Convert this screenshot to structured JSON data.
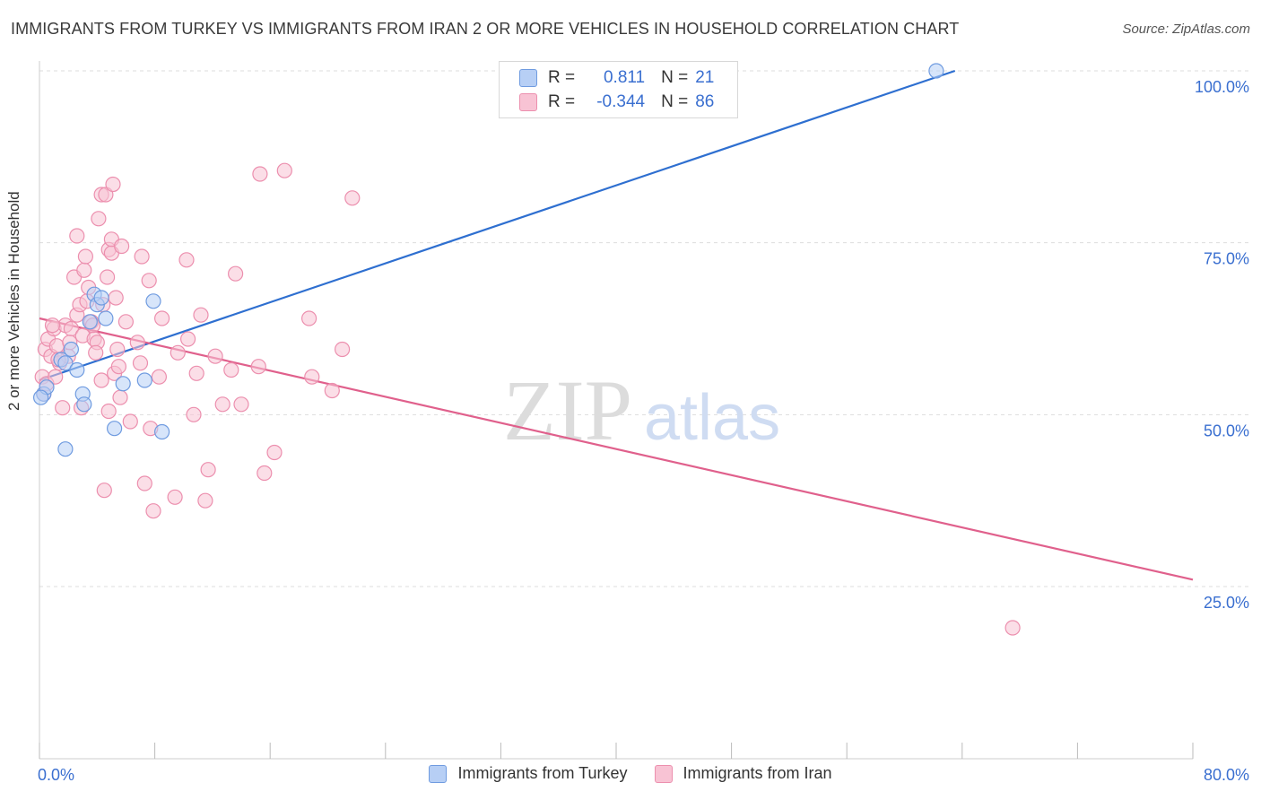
{
  "header": {
    "title": "IMMIGRANTS FROM TURKEY VS IMMIGRANTS FROM IRAN 2 OR MORE VEHICLES IN HOUSEHOLD CORRELATION CHART",
    "source": "Source: ZipAtlas.com"
  },
  "legend": {
    "r_label": "R =",
    "n_label": "N =",
    "turkey": {
      "r": "0.811",
      "n": "21"
    },
    "iran": {
      "r": "-0.344",
      "n": "86"
    }
  },
  "watermark": {
    "zip": "ZIP",
    "atlas": "atlas"
  },
  "colors": {
    "turkey_fill": "#b7cff5",
    "turkey_stroke": "#6f9be0",
    "turkey_line": "#2e6fd0",
    "iran_fill": "#f8c3d4",
    "iran_stroke": "#ec8fae",
    "iran_line": "#e0608c",
    "tick_label": "#3a6fd0",
    "grid": "#dddddd"
  },
  "chart_data": {
    "type": "scatter",
    "title": "IMMIGRANTS FROM TURKEY VS IMMIGRANTS FROM IRAN 2 OR MORE VEHICLES IN HOUSEHOLD CORRELATION CHART",
    "xlabel": "",
    "ylabel": "2 or more Vehicles in Household",
    "xlim": [
      0,
      80
    ],
    "ylim": [
      0,
      104
    ],
    "x_tick_labels": [
      {
        "value": 0,
        "label": "0.0%"
      },
      {
        "value": 80,
        "label": "80.0%"
      }
    ],
    "y_tick_labels": [
      {
        "value": 100,
        "label": "100.0%"
      },
      {
        "value": 75,
        "label": "75.0%"
      },
      {
        "value": 50,
        "label": "50.0%"
      },
      {
        "value": 25,
        "label": "25.0%"
      }
    ],
    "series": [
      {
        "name": "Immigrants from Turkey",
        "trend": {
          "x": [
            0,
            63.5
          ],
          "y": [
            55.0,
            100.0
          ]
        },
        "points": [
          [
            0.3,
            53.0
          ],
          [
            0.5,
            54.0
          ],
          [
            1.5,
            58.0
          ],
          [
            1.8,
            57.5
          ],
          [
            2.2,
            59.5
          ],
          [
            2.6,
            56.5
          ],
          [
            3.0,
            53.0
          ],
          [
            3.1,
            51.5
          ],
          [
            3.5,
            63.5
          ],
          [
            3.8,
            67.5
          ],
          [
            4.0,
            66.0
          ],
          [
            4.3,
            67.0
          ],
          [
            4.6,
            64.0
          ],
          [
            5.2,
            48.0
          ],
          [
            5.8,
            54.5
          ],
          [
            7.3,
            55.0
          ],
          [
            7.9,
            66.5
          ],
          [
            8.5,
            47.5
          ],
          [
            1.8,
            45.0
          ],
          [
            0.1,
            52.5
          ],
          [
            62.2,
            100.0
          ]
        ]
      },
      {
        "name": "Immigrants from Iran",
        "trend": {
          "x": [
            0,
            80
          ],
          "y": [
            64.0,
            26.0
          ]
        },
        "points": [
          [
            0.2,
            55.5
          ],
          [
            0.4,
            59.5
          ],
          [
            0.6,
            61.0
          ],
          [
            0.8,
            58.5
          ],
          [
            1.0,
            62.5
          ],
          [
            1.2,
            60.0
          ],
          [
            1.4,
            57.5
          ],
          [
            1.6,
            51.0
          ],
          [
            1.8,
            63.0
          ],
          [
            2.0,
            58.5
          ],
          [
            2.2,
            62.5
          ],
          [
            2.4,
            70.0
          ],
          [
            2.6,
            64.5
          ],
          [
            2.6,
            76.0
          ],
          [
            2.8,
            66.0
          ],
          [
            3.0,
            61.5
          ],
          [
            3.1,
            71.0
          ],
          [
            3.2,
            73.0
          ],
          [
            3.3,
            66.5
          ],
          [
            3.4,
            68.5
          ],
          [
            3.6,
            63.5
          ],
          [
            3.8,
            61.0
          ],
          [
            4.0,
            60.5
          ],
          [
            4.1,
            78.5
          ],
          [
            4.3,
            82.0
          ],
          [
            4.3,
            55.0
          ],
          [
            4.4,
            66.0
          ],
          [
            4.5,
            39.0
          ],
          [
            4.6,
            82.0
          ],
          [
            4.7,
            70.0
          ],
          [
            4.8,
            50.5
          ],
          [
            4.8,
            74.0
          ],
          [
            5.0,
            73.5
          ],
          [
            5.0,
            75.5
          ],
          [
            5.1,
            83.5
          ],
          [
            5.2,
            56.0
          ],
          [
            5.3,
            67.0
          ],
          [
            5.4,
            59.5
          ],
          [
            5.5,
            57.0
          ],
          [
            5.6,
            52.5
          ],
          [
            5.7,
            74.5
          ],
          [
            6.0,
            63.5
          ],
          [
            6.3,
            49.0
          ],
          [
            6.8,
            60.5
          ],
          [
            7.0,
            57.5
          ],
          [
            7.1,
            73.0
          ],
          [
            7.3,
            40.0
          ],
          [
            7.6,
            69.5
          ],
          [
            7.7,
            48.0
          ],
          [
            7.9,
            36.0
          ],
          [
            8.3,
            55.5
          ],
          [
            8.5,
            64.0
          ],
          [
            9.4,
            38.0
          ],
          [
            9.6,
            59.0
          ],
          [
            10.2,
            72.5
          ],
          [
            10.3,
            61.0
          ],
          [
            10.7,
            50.0
          ],
          [
            10.9,
            56.0
          ],
          [
            11.2,
            64.5
          ],
          [
            11.5,
            37.5
          ],
          [
            11.7,
            42.0
          ],
          [
            12.2,
            58.5
          ],
          [
            12.7,
            51.5
          ],
          [
            13.3,
            56.5
          ],
          [
            13.6,
            70.5
          ],
          [
            14.0,
            51.5
          ],
          [
            15.2,
            57.0
          ],
          [
            15.3,
            85.0
          ],
          [
            15.6,
            41.5
          ],
          [
            16.3,
            44.5
          ],
          [
            17.0,
            85.5
          ],
          [
            18.7,
            64.0
          ],
          [
            18.9,
            55.5
          ],
          [
            20.3,
            53.5
          ],
          [
            21.0,
            59.5
          ],
          [
            21.7,
            81.5
          ],
          [
            0.3,
            53.0
          ],
          [
            0.5,
            54.5
          ],
          [
            1.1,
            55.5
          ],
          [
            0.9,
            63.0
          ],
          [
            2.9,
            51.0
          ],
          [
            3.7,
            63.0
          ],
          [
            3.9,
            59.0
          ],
          [
            2.1,
            60.5
          ],
          [
            1.3,
            58.0
          ],
          [
            67.5,
            19.0
          ]
        ]
      }
    ]
  },
  "bottom_legend": {
    "turkey": "Immigrants from Turkey",
    "iran": "Immigrants from Iran"
  }
}
